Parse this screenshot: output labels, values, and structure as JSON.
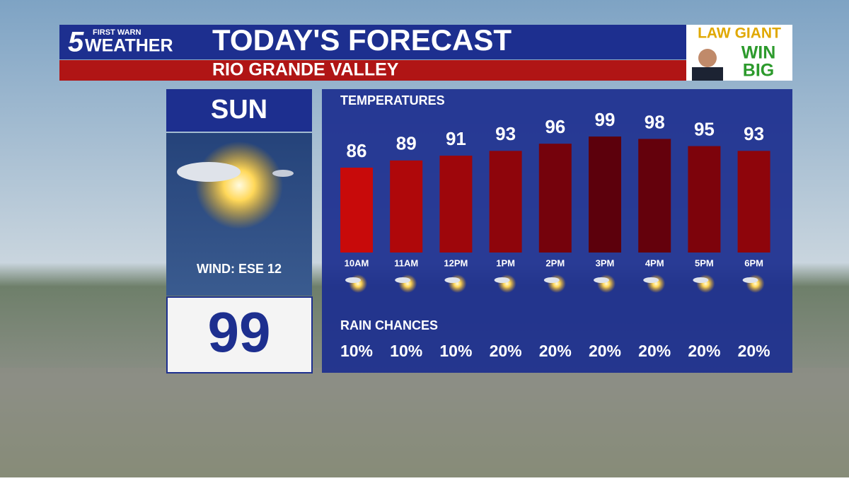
{
  "header": {
    "logo_top": "FIRST WARN",
    "logo_num": "5",
    "logo_word": "WEATHER",
    "title": "TODAY'S FORECAST",
    "subtitle": "RIO GRANDE VALLEY"
  },
  "ad": {
    "line1": "LAW GIANT",
    "line2": "WIN",
    "line3": "BIG"
  },
  "day_panel": {
    "day": "SUN",
    "wind": "WIND: ESE 12",
    "high": 99
  },
  "chart_data": {
    "type": "bar",
    "title": "TEMPERATURES",
    "categories": [
      "10AM",
      "11AM",
      "12PM",
      "1PM",
      "2PM",
      "3PM",
      "4PM",
      "5PM",
      "6PM"
    ],
    "values": [
      86,
      89,
      91,
      93,
      96,
      99,
      98,
      95,
      93
    ]
  },
  "rain_chances": {
    "title": "RAIN CHANCES",
    "values": [
      10,
      10,
      10,
      20,
      20,
      20,
      20,
      20,
      20
    ],
    "value_labels": [
      "10%",
      "10%",
      "10%",
      "20%",
      "20%",
      "20%",
      "20%",
      "20%",
      "20%"
    ]
  }
}
